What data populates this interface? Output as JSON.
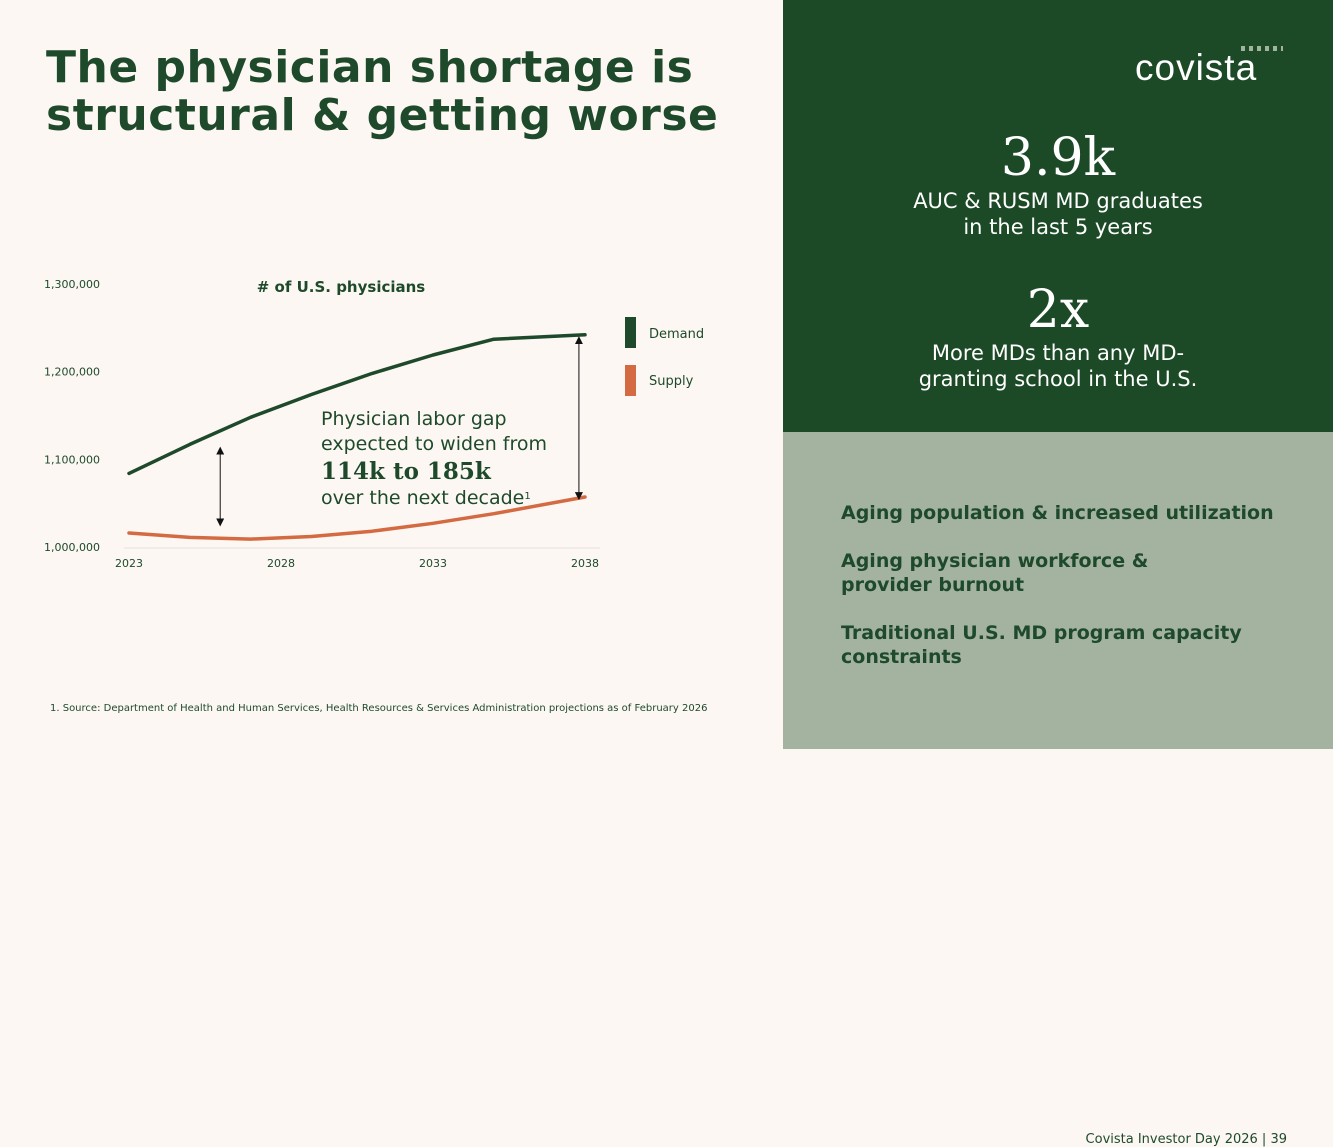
{
  "title": {
    "line1": "The physician shortage is",
    "line2": "structural & getting worse"
  },
  "chart_data": {
    "type": "line",
    "title": "# of U.S. physicians",
    "x": [
      2023,
      2025,
      2027,
      2029,
      2031,
      2033,
      2035,
      2038
    ],
    "x_ticks": [
      "2023",
      "2028",
      "2033",
      "2038"
    ],
    "xlim": [
      2023,
      2038
    ],
    "ylim": [
      1000000,
      1300000
    ],
    "y_ticks": [
      "1,000,000",
      "1,100,000",
      "1,200,000",
      "1,300,000"
    ],
    "y_tick_values": [
      1000000,
      1100000,
      1200000,
      1300000
    ],
    "series": [
      {
        "name": "Demand",
        "color": "#1e4a2b",
        "values": [
          1084000,
          1117000,
          1148000,
          1174000,
          1198000,
          1219000,
          1237000,
          1242000
        ]
      },
      {
        "name": "Supply",
        "color": "#d46a41",
        "values": [
          1016000,
          1011000,
          1009000,
          1012000,
          1018000,
          1027000,
          1038000,
          1057000
        ]
      }
    ],
    "legend_position": "right",
    "gap_markers": [
      {
        "x": 2026,
        "low": 1028000,
        "high": 1110000
      },
      {
        "x": 2037.8,
        "low": 1058000,
        "high": 1236000
      }
    ]
  },
  "annotation": {
    "line1": "Physician labor gap",
    "line2": "expected to widen from",
    "highlight": "114k to 185k",
    "line3": "over the next decade",
    "footnote_mark": "1"
  },
  "footnote": "1.  Source: Department of Health and Human Services, Health Resources & Services Administration projections as of February 2026",
  "logo": "covista",
  "stats": [
    {
      "value": "3.9k",
      "desc_line1": "AUC & RUSM MD graduates",
      "desc_line2": "in the last 5 years"
    },
    {
      "value": "2x",
      "desc_line1": "More MDs than any MD-",
      "desc_line2": "granting school in the U.S."
    }
  ],
  "factors": [
    "Aging population & increased utilization",
    "Aging physician workforce & provider burnout",
    "Traditional U.S. MD program capacity constraints"
  ],
  "page_footer": "Covista Investor Day 2026 |  39"
}
